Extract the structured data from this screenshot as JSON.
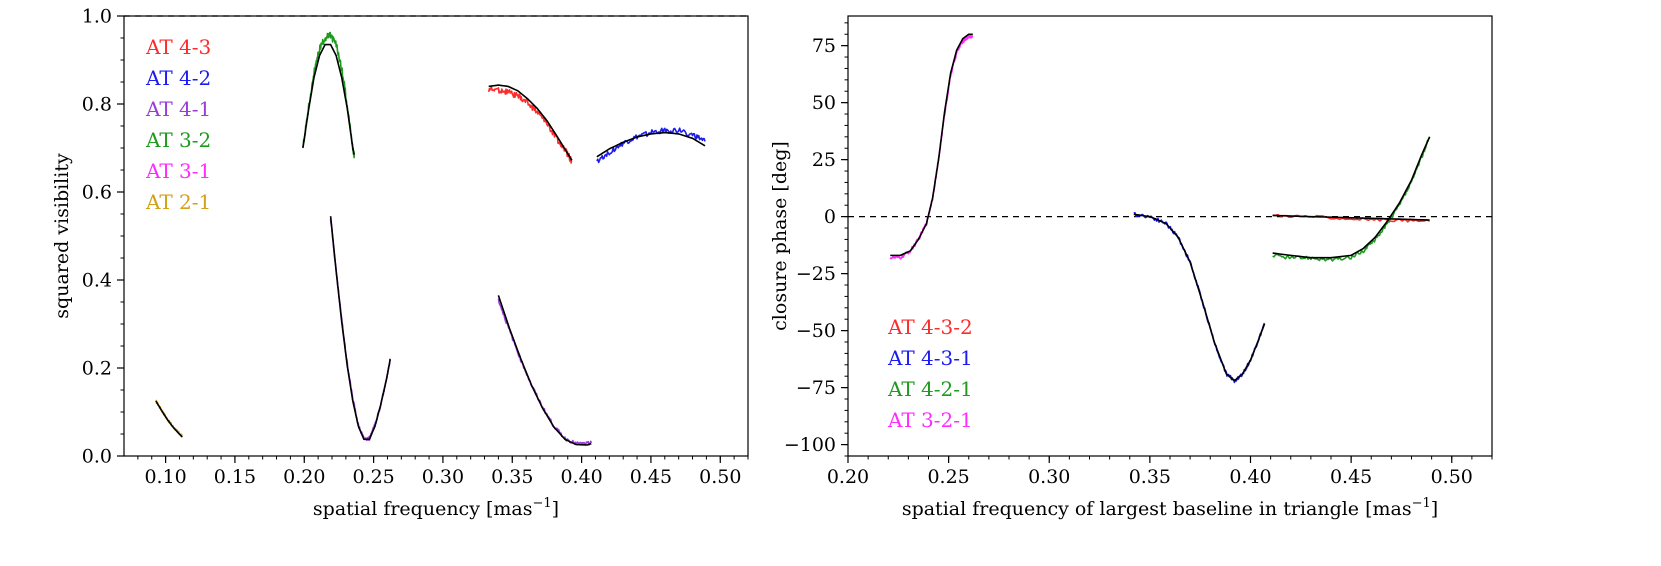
{
  "chart_data": [
    {
      "type": "line",
      "title": "",
      "xlabel": "spatial frequency [mas",
      "xlabel_sup": "−1",
      "xlabel_tail": "]",
      "ylabel": "squared visibility",
      "xlim": [
        0.07,
        0.52
      ],
      "ylim": [
        0.0,
        1.0
      ],
      "xticks": [
        0.1,
        0.15,
        0.2,
        0.25,
        0.3,
        0.35,
        0.4,
        0.45,
        0.5
      ],
      "xtick_labels": [
        "0.10",
        "0.15",
        "0.20",
        "0.25",
        "0.30",
        "0.35",
        "0.40",
        "0.45",
        "0.50"
      ],
      "yticks": [
        0.0,
        0.2,
        0.4,
        0.6,
        0.8,
        1.0
      ],
      "ytick_labels": [
        "0.0",
        "0.2",
        "0.4",
        "0.6",
        "0.8",
        "1.0"
      ],
      "reference_line": {
        "y": 1.0,
        "style": "dashed"
      },
      "legend_position": "upper-left",
      "legend": [
        {
          "label": "AT 4-3",
          "color": "#ff2b2b"
        },
        {
          "label": "AT 4-2",
          "color": "#1c1cf0"
        },
        {
          "label": "AT 4-1",
          "color": "#9b3bdb"
        },
        {
          "label": "AT 3-2",
          "color": "#1e9a1e"
        },
        {
          "label": "AT 3-1",
          "color": "#ff2bff"
        },
        {
          "label": "AT 2-1",
          "color": "#d4a017"
        }
      ],
      "series": [
        {
          "name": "AT 2-1 data",
          "color": "#d4a017",
          "noise": 0.003,
          "x": [
            0.093,
            0.097,
            0.101,
            0.105,
            0.109,
            0.112
          ],
          "y": [
            0.125,
            0.105,
            0.085,
            0.068,
            0.054,
            0.045
          ]
        },
        {
          "name": "AT 3-2 data",
          "color": "#1e9a1e",
          "noise": 0.008,
          "x": [
            0.199,
            0.203,
            0.207,
            0.211,
            0.215,
            0.219,
            0.223,
            0.227,
            0.231,
            0.235,
            0.236
          ],
          "y": [
            0.7,
            0.79,
            0.87,
            0.925,
            0.95,
            0.955,
            0.935,
            0.88,
            0.8,
            0.7,
            0.685
          ]
        },
        {
          "name": "AT 4-1 data (low)",
          "color": "#9b3bdb",
          "noise": 0.004,
          "x": [
            0.219,
            0.223,
            0.227,
            0.231,
            0.235,
            0.239,
            0.243,
            0.247,
            0.251,
            0.255,
            0.259,
            0.262
          ],
          "y": [
            0.54,
            0.42,
            0.31,
            0.21,
            0.13,
            0.07,
            0.04,
            0.04,
            0.07,
            0.115,
            0.17,
            0.22
          ]
        },
        {
          "name": "AT 4-3 data",
          "color": "#ff2b2b",
          "noise": 0.007,
          "x": [
            0.333,
            0.34,
            0.347,
            0.354,
            0.361,
            0.368,
            0.375,
            0.382,
            0.389,
            0.393
          ],
          "y": [
            0.833,
            0.832,
            0.827,
            0.818,
            0.803,
            0.783,
            0.756,
            0.722,
            0.69,
            0.67
          ]
        },
        {
          "name": "AT 4-1 data (high)",
          "color": "#9b3bdb",
          "noise": 0.004,
          "x": [
            0.34,
            0.348,
            0.356,
            0.364,
            0.372,
            0.38,
            0.388,
            0.396,
            0.404,
            0.407
          ],
          "y": [
            0.355,
            0.285,
            0.22,
            0.16,
            0.11,
            0.068,
            0.04,
            0.028,
            0.028,
            0.03
          ]
        },
        {
          "name": "AT 4-2 data",
          "color": "#1c1cf0",
          "noise": 0.006,
          "x": [
            0.411,
            0.42,
            0.43,
            0.44,
            0.45,
            0.46,
            0.47,
            0.48,
            0.489
          ],
          "y": [
            0.67,
            0.69,
            0.71,
            0.725,
            0.735,
            0.74,
            0.74,
            0.73,
            0.715
          ]
        },
        {
          "name": "model",
          "color": "#000000",
          "noise": 0,
          "x": [
            0.093,
            0.097,
            0.101,
            0.105,
            0.109,
            0.112
          ],
          "y": [
            0.125,
            0.104,
            0.084,
            0.067,
            0.053,
            0.043
          ]
        },
        {
          "name": "model",
          "color": "#000000",
          "noise": 0,
          "x": [
            0.199,
            0.203,
            0.207,
            0.211,
            0.215,
            0.219,
            0.223,
            0.227,
            0.231,
            0.235,
            0.236
          ],
          "y": [
            0.7,
            0.785,
            0.86,
            0.91,
            0.935,
            0.935,
            0.91,
            0.86,
            0.79,
            0.7,
            0.685
          ]
        },
        {
          "name": "model",
          "color": "#000000",
          "noise": 0,
          "x": [
            0.219,
            0.223,
            0.227,
            0.231,
            0.235,
            0.239,
            0.243,
            0.247,
            0.251,
            0.255,
            0.259,
            0.262
          ],
          "y": [
            0.545,
            0.42,
            0.305,
            0.205,
            0.125,
            0.068,
            0.038,
            0.038,
            0.068,
            0.115,
            0.17,
            0.22
          ]
        },
        {
          "name": "model",
          "color": "#000000",
          "noise": 0,
          "x": [
            0.333,
            0.34,
            0.347,
            0.354,
            0.361,
            0.368,
            0.375,
            0.382,
            0.389,
            0.393
          ],
          "y": [
            0.84,
            0.843,
            0.84,
            0.83,
            0.812,
            0.79,
            0.762,
            0.728,
            0.692,
            0.672
          ]
        },
        {
          "name": "model",
          "color": "#000000",
          "noise": 0,
          "x": [
            0.34,
            0.348,
            0.356,
            0.364,
            0.372,
            0.38,
            0.388,
            0.396,
            0.404,
            0.407
          ],
          "y": [
            0.365,
            0.29,
            0.222,
            0.16,
            0.108,
            0.066,
            0.038,
            0.026,
            0.025,
            0.028
          ]
        },
        {
          "name": "model",
          "color": "#000000",
          "noise": 0,
          "x": [
            0.411,
            0.42,
            0.43,
            0.44,
            0.45,
            0.46,
            0.47,
            0.48,
            0.489
          ],
          "y": [
            0.68,
            0.698,
            0.713,
            0.725,
            0.732,
            0.735,
            0.732,
            0.722,
            0.705
          ]
        }
      ]
    },
    {
      "type": "line",
      "title": "",
      "xlabel": "spatial frequency of largest baseline in triangle [mas",
      "xlabel_sup": "−1",
      "xlabel_tail": "]",
      "ylabel": "closure phase [deg]",
      "xlim": [
        0.2,
        0.52
      ],
      "ylim": [
        -105,
        88
      ],
      "xticks": [
        0.2,
        0.25,
        0.3,
        0.35,
        0.4,
        0.45,
        0.5
      ],
      "xtick_labels": [
        "0.20",
        "0.25",
        "0.30",
        "0.35",
        "0.40",
        "0.45",
        "0.50"
      ],
      "yticks": [
        75,
        50,
        25,
        0,
        -25,
        -50,
        -75,
        -100
      ],
      "ytick_labels": [
        "75",
        "50",
        "25",
        "0",
        "−25",
        "−50",
        "−75",
        "−100"
      ],
      "reference_line": {
        "y": 0,
        "style": "dashed"
      },
      "legend_position": "lower-left",
      "legend": [
        {
          "label": "AT 4-3-2",
          "color": "#ff2b2b"
        },
        {
          "label": "AT 4-3-1",
          "color": "#1c1cf0"
        },
        {
          "label": "AT 4-2-1",
          "color": "#1e9a1e"
        },
        {
          "label": "AT 3-2-1",
          "color": "#ff2bff"
        }
      ],
      "series": [
        {
          "name": "AT 3-2-1 data",
          "color": "#ff2bff",
          "noise": 0.8,
          "x": [
            0.221,
            0.226,
            0.231,
            0.235,
            0.239,
            0.242,
            0.245,
            0.248,
            0.251,
            0.254,
            0.257,
            0.26,
            0.262
          ],
          "y": [
            -18,
            -18,
            -15,
            -10,
            -3,
            8,
            25,
            45,
            62,
            72,
            77,
            79,
            79
          ]
        },
        {
          "name": "AT 4-3-1 data",
          "color": "#1c1cf0",
          "noise": 0.8,
          "x": [
            0.342,
            0.35,
            0.358,
            0.364,
            0.37,
            0.376,
            0.382,
            0.388,
            0.392,
            0.396,
            0.4,
            0.404,
            0.407
          ],
          "y": [
            1,
            0,
            -3,
            -9,
            -20,
            -37,
            -55,
            -69,
            -72,
            -69,
            -63,
            -54,
            -47
          ]
        },
        {
          "name": "AT 4-3-2 data",
          "color": "#ff2b2b",
          "noise": 0.6,
          "x": [
            0.411,
            0.43,
            0.45,
            0.47,
            0.489
          ],
          "y": [
            0.5,
            0,
            -1,
            -1.5,
            -2
          ]
        },
        {
          "name": "AT 4-2-1 data",
          "color": "#1e9a1e",
          "noise": 0.8,
          "x": [
            0.411,
            0.42,
            0.43,
            0.44,
            0.45,
            0.456,
            0.462,
            0.468,
            0.474,
            0.48,
            0.485,
            0.489
          ],
          "y": [
            -17,
            -18,
            -18,
            -19,
            -18,
            -15,
            -10,
            -3,
            5,
            15,
            26,
            35
          ]
        },
        {
          "name": "model",
          "color": "#000000",
          "noise": 0,
          "x": [
            0.221,
            0.226,
            0.231,
            0.235,
            0.239,
            0.242,
            0.245,
            0.248,
            0.251,
            0.254,
            0.257,
            0.26,
            0.262
          ],
          "y": [
            -17,
            -17,
            -15,
            -10,
            -3,
            8,
            25,
            46,
            63,
            73,
            78,
            80,
            80
          ]
        },
        {
          "name": "model",
          "color": "#000000",
          "noise": 0,
          "x": [
            0.342,
            0.35,
            0.358,
            0.364,
            0.37,
            0.376,
            0.382,
            0.388,
            0.392,
            0.396,
            0.4,
            0.404,
            0.407
          ],
          "y": [
            1,
            0,
            -3,
            -9,
            -20,
            -37,
            -55,
            -69,
            -72,
            -69,
            -63,
            -54,
            -47
          ]
        },
        {
          "name": "model",
          "color": "#000000",
          "noise": 0,
          "x": [
            0.411,
            0.43,
            0.45,
            0.47,
            0.489
          ],
          "y": [
            0.5,
            0,
            -0.5,
            -1,
            -1.5
          ]
        },
        {
          "name": "model",
          "color": "#000000",
          "noise": 0,
          "x": [
            0.411,
            0.42,
            0.43,
            0.44,
            0.45,
            0.456,
            0.462,
            0.468,
            0.474,
            0.48,
            0.485,
            0.489
          ],
          "y": [
            -16,
            -17,
            -18,
            -18,
            -17,
            -14,
            -9,
            -2,
            6,
            16,
            27,
            35
          ]
        }
      ]
    }
  ]
}
